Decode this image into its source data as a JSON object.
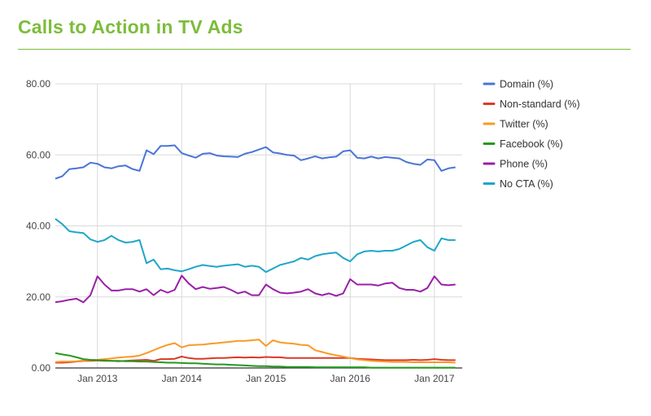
{
  "title": "Calls to Action in TV Ads",
  "chart_data": {
    "type": "line",
    "title": "Calls to Action in TV Ads",
    "xlabel": "",
    "ylabel": "",
    "ylim": [
      0,
      80
    ],
    "yticks": [
      "0.00",
      "20.00",
      "40.00",
      "60.00",
      "80.00"
    ],
    "xlim": [
      2012.5,
      2017.33
    ],
    "xticks": [
      {
        "label": "Jan 2013",
        "value": 2013
      },
      {
        "label": "Jan 2014",
        "value": 2014
      },
      {
        "label": "Jan 2015",
        "value": 2015
      },
      {
        "label": "Jan 2016",
        "value": 2016
      },
      {
        "label": "Jan 2017",
        "value": 2017
      }
    ],
    "legend_position": "right",
    "x_start": 2012.5,
    "x_step_months": 1,
    "series": [
      {
        "name": "Domain (%)",
        "color": "#4a74d8",
        "values": [
          53.3,
          54.0,
          56.0,
          56.2,
          56.5,
          57.8,
          57.5,
          56.5,
          56.2,
          56.8,
          57.0,
          56.0,
          55.5,
          61.3,
          60.2,
          62.5,
          62.5,
          62.7,
          60.5,
          59.8,
          59.2,
          60.3,
          60.5,
          59.8,
          59.6,
          59.5,
          59.4,
          60.3,
          60.8,
          61.5,
          62.2,
          60.7,
          60.4,
          60.0,
          59.8,
          58.5,
          59.0,
          59.6,
          59.0,
          59.3,
          59.5,
          61.0,
          61.3,
          59.2,
          59.0,
          59.5,
          59.0,
          59.4,
          59.2,
          59.0,
          58.0,
          57.5,
          57.2,
          58.7,
          58.5,
          55.5,
          56.2,
          56.5
        ]
      },
      {
        "name": "Non-standard (%)",
        "color": "#db3a25",
        "values": [
          1.5,
          1.5,
          1.6,
          1.8,
          2.0,
          2.0,
          2.1,
          2.0,
          2.0,
          1.9,
          2.0,
          2.1,
          2.2,
          2.3,
          2.0,
          2.5,
          2.5,
          2.6,
          3.2,
          2.8,
          2.6,
          2.6,
          2.7,
          2.8,
          2.8,
          2.9,
          3.0,
          2.9,
          3.0,
          2.9,
          3.1,
          3.0,
          3.0,
          2.8,
          2.8,
          2.8,
          2.8,
          2.8,
          2.8,
          2.8,
          2.8,
          2.8,
          2.8,
          2.6,
          2.5,
          2.4,
          2.3,
          2.2,
          2.2,
          2.2,
          2.2,
          2.3,
          2.2,
          2.3,
          2.5,
          2.3,
          2.2,
          2.2
        ]
      },
      {
        "name": "Twitter (%)",
        "color": "#f99a27",
        "values": [
          1.7,
          1.8,
          1.8,
          1.9,
          2.1,
          2.2,
          2.3,
          2.5,
          2.7,
          2.9,
          3.1,
          3.2,
          3.5,
          4.2,
          5.0,
          5.8,
          6.5,
          7.0,
          5.8,
          6.4,
          6.5,
          6.6,
          6.8,
          7.0,
          7.2,
          7.4,
          7.6,
          7.6,
          7.8,
          8.0,
          6.2,
          7.8,
          7.2,
          7.0,
          6.8,
          6.5,
          6.4,
          5.0,
          4.5,
          4.0,
          3.6,
          3.2,
          2.8,
          2.4,
          2.2,
          2.0,
          1.9,
          1.8,
          1.7,
          1.7,
          1.7,
          1.6,
          1.6,
          1.6,
          1.6,
          1.6,
          1.6,
          1.5
        ]
      },
      {
        "name": "Facebook (%)",
        "color": "#249a1d",
        "values": [
          4.2,
          3.8,
          3.5,
          3.0,
          2.5,
          2.3,
          2.2,
          2.1,
          2.0,
          2.0,
          1.9,
          1.9,
          1.8,
          1.8,
          1.7,
          1.6,
          1.5,
          1.5,
          1.4,
          1.3,
          1.3,
          1.2,
          1.1,
          1.0,
          1.0,
          0.9,
          0.8,
          0.7,
          0.6,
          0.5,
          0.5,
          0.4,
          0.4,
          0.3,
          0.3,
          0.3,
          0.3,
          0.2,
          0.2,
          0.2,
          0.2,
          0.2,
          0.2,
          0.2,
          0.2,
          0.1,
          0.1,
          0.1,
          0.1,
          0.1,
          0.1,
          0.1,
          0.1,
          0.1,
          0.1,
          0.1,
          0.1,
          0.1
        ]
      },
      {
        "name": "Phone (%)",
        "color": "#9a1fa8",
        "values": [
          18.5,
          18.8,
          19.2,
          19.5,
          18.5,
          20.5,
          25.8,
          23.5,
          21.8,
          21.8,
          22.2,
          22.2,
          21.5,
          22.2,
          20.5,
          22.0,
          21.2,
          22.0,
          26.0,
          23.8,
          22.2,
          22.8,
          22.3,
          22.5,
          22.8,
          22.0,
          21.0,
          21.5,
          20.5,
          20.5,
          23.5,
          22.2,
          21.2,
          21.0,
          21.2,
          21.5,
          22.2,
          21.0,
          20.5,
          21.0,
          20.3,
          21.0,
          25.0,
          23.5,
          23.5,
          23.5,
          23.2,
          23.8,
          24.0,
          22.5,
          22.0,
          22.0,
          21.5,
          22.5,
          25.8,
          23.5,
          23.3,
          23.5
        ]
      },
      {
        "name": "No CTA (%)",
        "color": "#1fa6c9",
        "values": [
          42.0,
          40.5,
          38.5,
          38.2,
          38.0,
          36.2,
          35.5,
          36.0,
          37.2,
          36.0,
          35.3,
          35.5,
          36.0,
          29.5,
          30.5,
          27.8,
          28.0,
          27.5,
          27.2,
          27.8,
          28.5,
          29.0,
          28.7,
          28.5,
          28.8,
          29.0,
          29.2,
          28.5,
          28.8,
          28.5,
          27.0,
          28.0,
          29.0,
          29.5,
          30.0,
          31.0,
          30.5,
          31.5,
          32.0,
          32.3,
          32.5,
          31.0,
          30.0,
          32.0,
          32.8,
          33.0,
          32.8,
          33.0,
          33.0,
          33.5,
          34.5,
          35.5,
          36.0,
          34.0,
          33.0,
          36.5,
          36.0,
          36.0
        ]
      }
    ]
  }
}
